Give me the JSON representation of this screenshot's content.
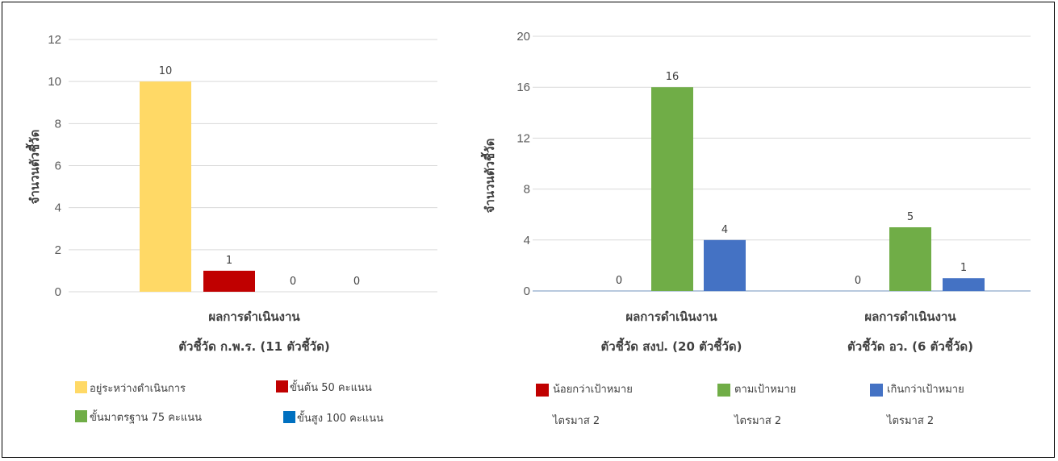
{
  "chart_data": [
    {
      "type": "bar",
      "ylabel": "จำนวนตัวชี้วัด",
      "ylim": [
        0,
        12
      ],
      "yticks": [
        "0",
        "2",
        "4",
        "6",
        "8",
        "10",
        "12"
      ],
      "grid": true,
      "legend_position": "bottom",
      "categories": [
        "ผลการดำเนินงาน\nตัวชี้วัด ก.พ.ร. (11 ตัวชี้วัด)"
      ],
      "category_lines": [
        [
          "ผลการดำเนินงาน",
          "ตัวชี้วัด ก.พ.ร. (11 ตัวชี้วัด)"
        ]
      ],
      "series": [
        {
          "name": "อยู่ระหว่างดำเนินการ",
          "color": "#FFD966",
          "values": [
            10
          ],
          "labels": [
            "10"
          ]
        },
        {
          "name": "ขั้นต้น 50 คะแนน",
          "color": "#C00000",
          "values": [
            1
          ],
          "labels": [
            "1"
          ]
        },
        {
          "name": "ขั้นมาตรฐาน 75 คะแนน",
          "color": "#70AD47",
          "values": [
            0
          ],
          "labels": [
            "0"
          ]
        },
        {
          "name": "ขั้นสูง 100 คะแนน",
          "color": "#0070C0",
          "values": [
            0
          ],
          "labels": [
            "0"
          ]
        }
      ]
    },
    {
      "type": "bar",
      "ylabel": "จำนวนตัวชี้วัด",
      "ylim": [
        0,
        20
      ],
      "yticks": [
        "0",
        "4",
        "8",
        "12",
        "16",
        "20"
      ],
      "grid": true,
      "legend_position": "bottom",
      "categories": [
        "ผลการดำเนินงาน\nตัวชี้วัด สงป. (20 ตัวชี้วัด)",
        "ผลการดำเนินงาน\nตัวชี้วัด อว. (6 ตัวชี้วัด)"
      ],
      "category_lines": [
        [
          "ผลการดำเนินงาน",
          "ตัวชี้วัด สงป. (20 ตัวชี้วัด)"
        ],
        [
          "ผลการดำเนินงาน",
          "ตัวชี้วัด อว. (6 ตัวชี้วัด)"
        ]
      ],
      "series": [
        {
          "name": "น้อยกว่าเป้าหมาย\nไตรมาส 2",
          "name_lines": [
            "น้อยกว่าเป้าหมาย",
            "ไตรมาส 2"
          ],
          "color": "#C00000",
          "values": [
            0,
            0
          ],
          "labels": [
            "0",
            "0"
          ]
        },
        {
          "name": "ตามเป้าหมาย\nไตรมาส 2",
          "name_lines": [
            "ตามเป้าหมาย",
            "ไตรมาส 2"
          ],
          "color": "#70AD47",
          "values": [
            16,
            5
          ],
          "labels": [
            "16",
            "5"
          ]
        },
        {
          "name": "เกินกว่าเป้าหมาย\nไตรมาส 2",
          "name_lines": [
            "เกินกว่าเป้าหมาย",
            "ไตรมาส 2"
          ],
          "color": "#4472C4",
          "values": [
            4,
            1
          ],
          "labels": [
            "4",
            "1"
          ]
        }
      ]
    }
  ]
}
